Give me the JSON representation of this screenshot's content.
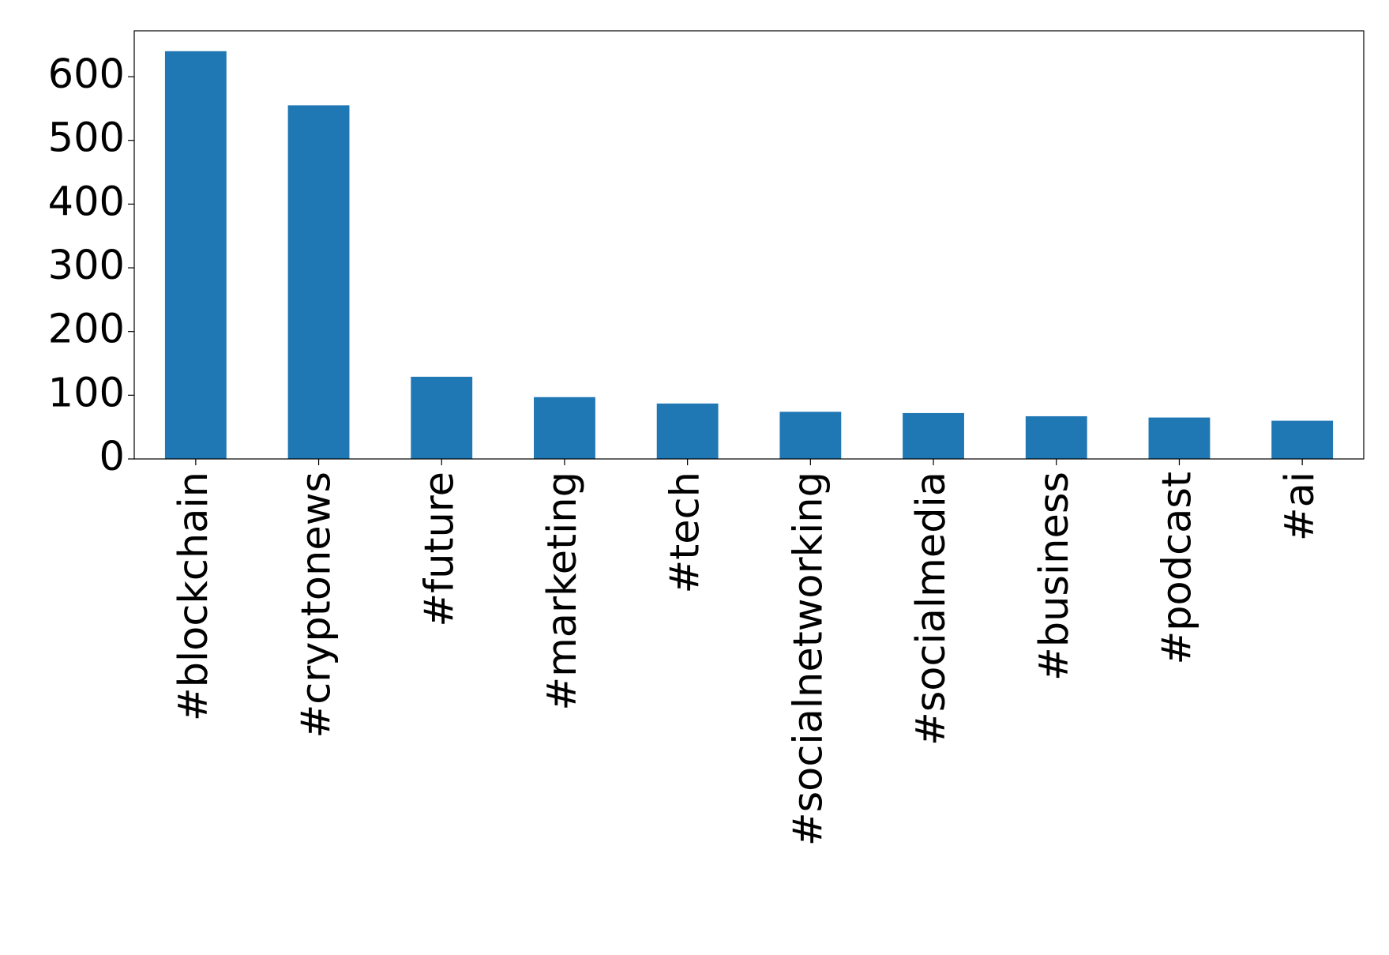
{
  "chart_data": {
    "type": "bar",
    "categories": [
      "#blockchain",
      "#cryptonews",
      "#future",
      "#marketing",
      "#tech",
      "#socialnetworking",
      "#socialmedia",
      "#business",
      "#podcast",
      "#ai"
    ],
    "values": [
      640,
      555,
      129,
      97,
      87,
      74,
      72,
      67,
      65,
      60
    ],
    "color": "#1f77b4",
    "ylim": [
      0,
      672
    ],
    "yticks": [
      0,
      100,
      200,
      300,
      400,
      500,
      600
    ],
    "grid": false
  }
}
